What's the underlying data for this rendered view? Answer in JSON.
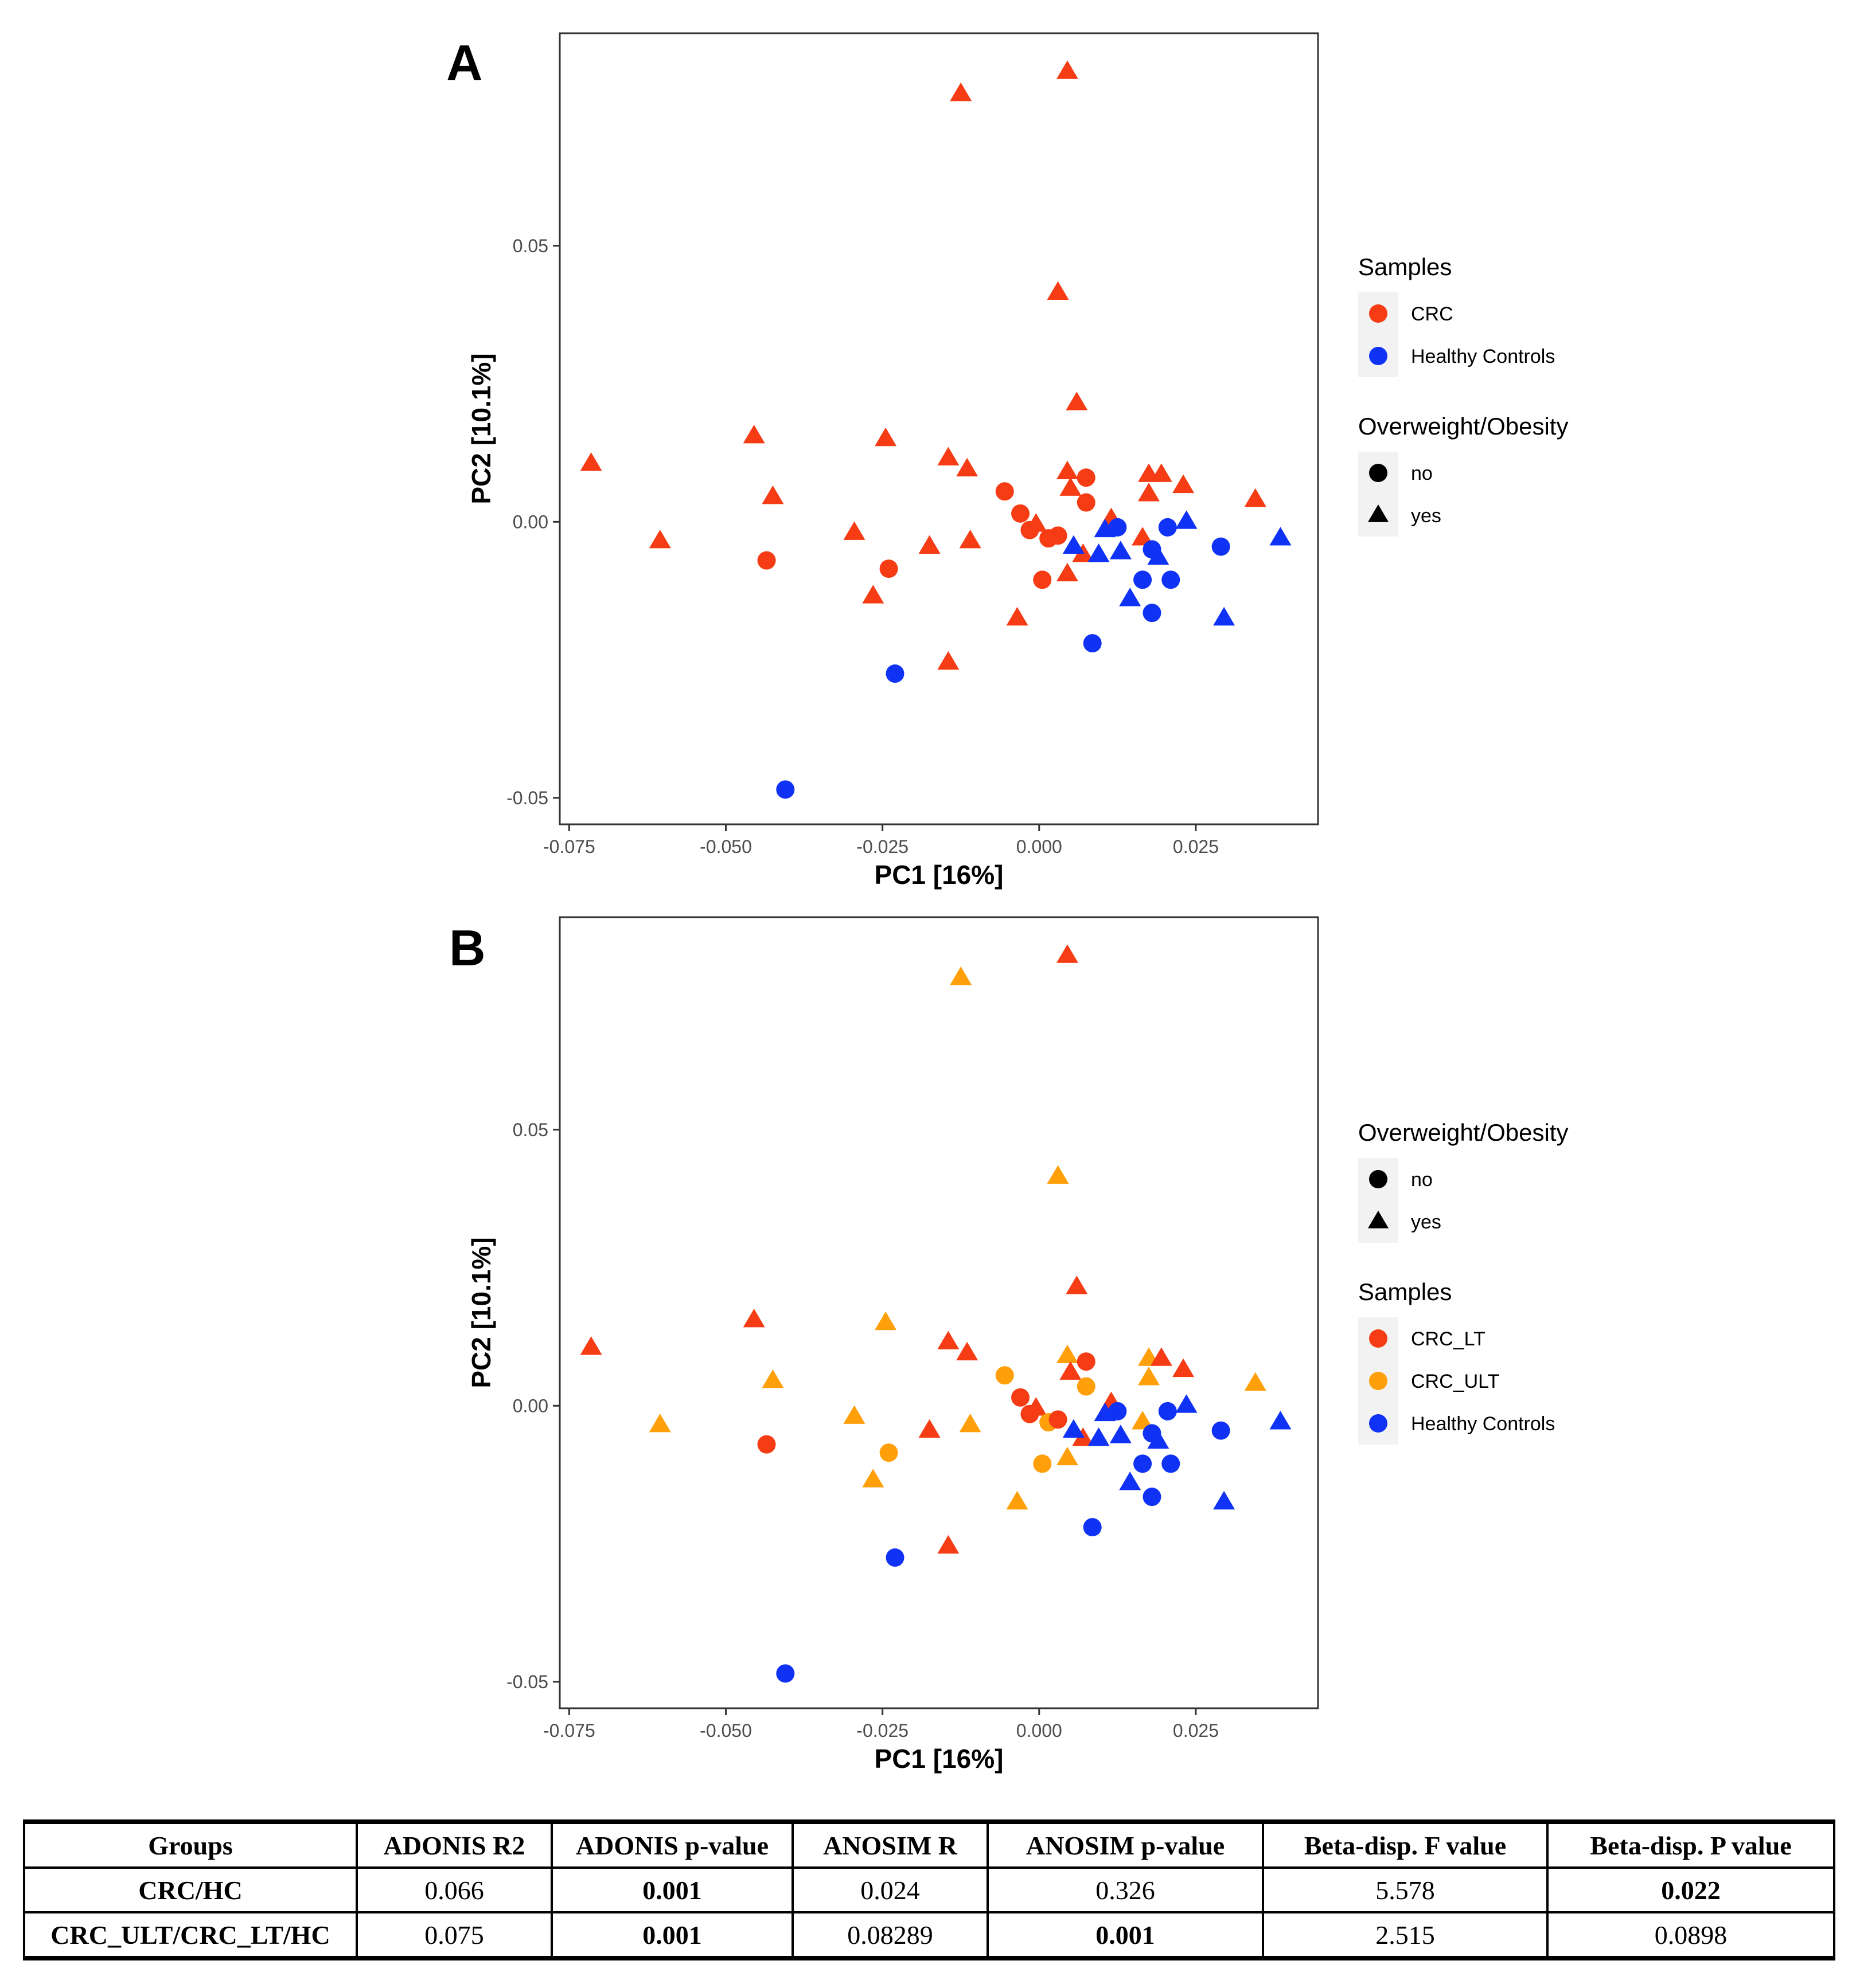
{
  "chart_data": [
    {
      "type": "scatter",
      "panel_label": "A",
      "xlabel": "PC1 [16%]",
      "ylabel": "PC2 [10.1%]",
      "xlim": [
        -0.0765,
        0.0445
      ],
      "ylim": [
        -0.0548,
        0.0885
      ],
      "xticks": [
        -0.075,
        -0.05,
        -0.025,
        0.0,
        0.025
      ],
      "xtick_labels": [
        "-0.075",
        "-0.050",
        "-0.025",
        "0.000",
        "0.025"
      ],
      "yticks": [
        -0.05,
        0.0,
        0.05
      ],
      "ytick_labels": [
        "-0.05",
        "0.00",
        "0.05"
      ],
      "grid": false,
      "legends": [
        {
          "title": "Samples",
          "kind": "color",
          "entries": [
            {
              "label": "CRC",
              "color": "#f53c14"
            },
            {
              "label": "Healthy Controls",
              "color": "#0f32f5"
            }
          ]
        },
        {
          "title": "Overweight/Obesity",
          "kind": "shape",
          "entries": [
            {
              "label": "no",
              "shape": "circle"
            },
            {
              "label": "yes",
              "shape": "triangle"
            }
          ]
        }
      ],
      "points": [
        {
          "x": 0.0045,
          "y": 0.0815,
          "group": "CRC",
          "obese": "yes"
        },
        {
          "x": -0.0125,
          "y": 0.0775,
          "group": "CRC",
          "obese": "yes"
        },
        {
          "x": 0.003,
          "y": 0.0415,
          "group": "CRC",
          "obese": "yes"
        },
        {
          "x": 0.006,
          "y": 0.0215,
          "group": "CRC",
          "obese": "yes"
        },
        {
          "x": -0.0455,
          "y": 0.0155,
          "group": "CRC",
          "obese": "yes"
        },
        {
          "x": -0.0245,
          "y": 0.015,
          "group": "CRC",
          "obese": "yes"
        },
        {
          "x": -0.0145,
          "y": 0.0115,
          "group": "CRC",
          "obese": "yes"
        },
        {
          "x": -0.0715,
          "y": 0.0105,
          "group": "CRC",
          "obese": "yes"
        },
        {
          "x": -0.0115,
          "y": 0.0095,
          "group": "CRC",
          "obese": "yes"
        },
        {
          "x": 0.0045,
          "y": 0.009,
          "group": "CRC",
          "obese": "yes"
        },
        {
          "x": 0.0175,
          "y": 0.0085,
          "group": "CRC",
          "obese": "yes"
        },
        {
          "x": 0.0195,
          "y": 0.0085,
          "group": "CRC",
          "obese": "yes"
        },
        {
          "x": 0.005,
          "y": 0.006,
          "group": "CRC",
          "obese": "yes"
        },
        {
          "x": 0.023,
          "y": 0.0065,
          "group": "CRC",
          "obese": "yes"
        },
        {
          "x": 0.0175,
          "y": 0.005,
          "group": "CRC",
          "obese": "yes"
        },
        {
          "x": -0.0425,
          "y": 0.0045,
          "group": "CRC",
          "obese": "yes"
        },
        {
          "x": 0.0345,
          "y": 0.004,
          "group": "CRC",
          "obese": "yes"
        },
        {
          "x": -0.0005,
          "y": -0.0005,
          "group": "CRC",
          "obese": "yes"
        },
        {
          "x": 0.0115,
          "y": 0.0005,
          "group": "CRC",
          "obese": "yes"
        },
        {
          "x": -0.0295,
          "y": -0.002,
          "group": "CRC",
          "obese": "yes"
        },
        {
          "x": 0.0165,
          "y": -0.003,
          "group": "CRC",
          "obese": "yes"
        },
        {
          "x": -0.0605,
          "y": -0.0035,
          "group": "CRC",
          "obese": "yes"
        },
        {
          "x": -0.011,
          "y": -0.0035,
          "group": "CRC",
          "obese": "yes"
        },
        {
          "x": -0.0175,
          "y": -0.0045,
          "group": "CRC",
          "obese": "yes"
        },
        {
          "x": 0.007,
          "y": -0.006,
          "group": "CRC",
          "obese": "yes"
        },
        {
          "x": 0.0045,
          "y": -0.0095,
          "group": "CRC",
          "obese": "yes"
        },
        {
          "x": -0.0265,
          "y": -0.0135,
          "group": "CRC",
          "obese": "yes"
        },
        {
          "x": -0.0035,
          "y": -0.0175,
          "group": "CRC",
          "obese": "yes"
        },
        {
          "x": -0.0145,
          "y": -0.0255,
          "group": "CRC",
          "obese": "yes"
        },
        {
          "x": -0.0055,
          "y": 0.0055,
          "group": "CRC",
          "obese": "no"
        },
        {
          "x": 0.0075,
          "y": 0.008,
          "group": "CRC",
          "obese": "no"
        },
        {
          "x": 0.0075,
          "y": 0.0035,
          "group": "CRC",
          "obese": "no"
        },
        {
          "x": -0.003,
          "y": 0.0015,
          "group": "CRC",
          "obese": "no"
        },
        {
          "x": -0.0015,
          "y": -0.0015,
          "group": "CRC",
          "obese": "no"
        },
        {
          "x": 0.0015,
          "y": -0.003,
          "group": "CRC",
          "obese": "no"
        },
        {
          "x": 0.003,
          "y": -0.0025,
          "group": "CRC",
          "obese": "no"
        },
        {
          "x": -0.0435,
          "y": -0.007,
          "group": "CRC",
          "obese": "no"
        },
        {
          "x": -0.024,
          "y": -0.0085,
          "group": "CRC",
          "obese": "no"
        },
        {
          "x": 0.0005,
          "y": -0.0105,
          "group": "CRC",
          "obese": "no"
        },
        {
          "x": 0.0055,
          "y": -0.0045,
          "group": "Healthy Controls",
          "obese": "yes"
        },
        {
          "x": 0.0105,
          "y": -0.0015,
          "group": "Healthy Controls",
          "obese": "yes"
        },
        {
          "x": 0.0095,
          "y": -0.006,
          "group": "Healthy Controls",
          "obese": "yes"
        },
        {
          "x": 0.013,
          "y": -0.0055,
          "group": "Healthy Controls",
          "obese": "yes"
        },
        {
          "x": 0.019,
          "y": -0.0065,
          "group": "Healthy Controls",
          "obese": "yes"
        },
        {
          "x": 0.0235,
          "y": 0.0,
          "group": "Healthy Controls",
          "obese": "yes"
        },
        {
          "x": 0.0385,
          "y": -0.003,
          "group": "Healthy Controls",
          "obese": "yes"
        },
        {
          "x": 0.0145,
          "y": -0.014,
          "group": "Healthy Controls",
          "obese": "yes"
        },
        {
          "x": 0.0295,
          "y": -0.0175,
          "group": "Healthy Controls",
          "obese": "yes"
        },
        {
          "x": 0.0125,
          "y": -0.001,
          "group": "Healthy Controls",
          "obese": "no"
        },
        {
          "x": 0.0205,
          "y": -0.001,
          "group": "Healthy Controls",
          "obese": "no"
        },
        {
          "x": 0.018,
          "y": -0.005,
          "group": "Healthy Controls",
          "obese": "no"
        },
        {
          "x": 0.029,
          "y": -0.0045,
          "group": "Healthy Controls",
          "obese": "no"
        },
        {
          "x": 0.0165,
          "y": -0.0105,
          "group": "Healthy Controls",
          "obese": "no"
        },
        {
          "x": 0.021,
          "y": -0.0105,
          "group": "Healthy Controls",
          "obese": "no"
        },
        {
          "x": 0.018,
          "y": -0.0165,
          "group": "Healthy Controls",
          "obese": "no"
        },
        {
          "x": 0.0085,
          "y": -0.022,
          "group": "Healthy Controls",
          "obese": "no"
        },
        {
          "x": -0.023,
          "y": -0.0275,
          "group": "Healthy Controls",
          "obese": "no"
        },
        {
          "x": -0.0405,
          "y": -0.0485,
          "group": "Healthy Controls",
          "obese": "no"
        }
      ]
    },
    {
      "type": "scatter",
      "panel_label": "B",
      "xlabel": "PC1 [16%]",
      "ylabel": "PC2 [10.1%]",
      "xlim": [
        -0.0765,
        0.0445
      ],
      "ylim": [
        -0.0548,
        0.0885
      ],
      "xticks": [
        -0.075,
        -0.05,
        -0.025,
        0.0,
        0.025
      ],
      "xtick_labels": [
        "-0.075",
        "-0.050",
        "-0.025",
        "0.000",
        "0.025"
      ],
      "yticks": [
        -0.05,
        0.0,
        0.05
      ],
      "ytick_labels": [
        "-0.05",
        "0.00",
        "0.05"
      ],
      "grid": false,
      "legends": [
        {
          "title": "Overweight/Obesity",
          "kind": "shape",
          "entries": [
            {
              "label": "no",
              "shape": "circle"
            },
            {
              "label": "yes",
              "shape": "triangle"
            }
          ]
        },
        {
          "title": "Samples",
          "kind": "color",
          "entries": [
            {
              "label": "CRC_LT",
              "color": "#f53c14"
            },
            {
              "label": "CRC_ULT",
              "color": "#ffa00a"
            },
            {
              "label": "Healthy Controls",
              "color": "#0f32f5"
            }
          ]
        }
      ],
      "points": [
        {
          "x": 0.0045,
          "y": 0.0815,
          "group": "CRC_LT",
          "obese": "yes"
        },
        {
          "x": -0.0125,
          "y": 0.0775,
          "group": "CRC_ULT",
          "obese": "yes"
        },
        {
          "x": 0.003,
          "y": 0.0415,
          "group": "CRC_ULT",
          "obese": "yes"
        },
        {
          "x": 0.006,
          "y": 0.0215,
          "group": "CRC_LT",
          "obese": "yes"
        },
        {
          "x": -0.0455,
          "y": 0.0155,
          "group": "CRC_LT",
          "obese": "yes"
        },
        {
          "x": -0.0245,
          "y": 0.015,
          "group": "CRC_ULT",
          "obese": "yes"
        },
        {
          "x": -0.0145,
          "y": 0.0115,
          "group": "CRC_LT",
          "obese": "yes"
        },
        {
          "x": -0.0715,
          "y": 0.0105,
          "group": "CRC_LT",
          "obese": "yes"
        },
        {
          "x": -0.0115,
          "y": 0.0095,
          "group": "CRC_LT",
          "obese": "yes"
        },
        {
          "x": 0.0045,
          "y": 0.009,
          "group": "CRC_ULT",
          "obese": "yes"
        },
        {
          "x": 0.0175,
          "y": 0.0085,
          "group": "CRC_ULT",
          "obese": "yes"
        },
        {
          "x": 0.0195,
          "y": 0.0085,
          "group": "CRC_LT",
          "obese": "yes"
        },
        {
          "x": 0.005,
          "y": 0.006,
          "group": "CRC_LT",
          "obese": "yes"
        },
        {
          "x": 0.023,
          "y": 0.0065,
          "group": "CRC_LT",
          "obese": "yes"
        },
        {
          "x": 0.0175,
          "y": 0.005,
          "group": "CRC_ULT",
          "obese": "yes"
        },
        {
          "x": -0.0425,
          "y": 0.0045,
          "group": "CRC_ULT",
          "obese": "yes"
        },
        {
          "x": 0.0345,
          "y": 0.004,
          "group": "CRC_ULT",
          "obese": "yes"
        },
        {
          "x": -0.0005,
          "y": -0.0005,
          "group": "CRC_LT",
          "obese": "yes"
        },
        {
          "x": 0.0115,
          "y": 0.0005,
          "group": "CRC_LT",
          "obese": "yes"
        },
        {
          "x": -0.0295,
          "y": -0.002,
          "group": "CRC_ULT",
          "obese": "yes"
        },
        {
          "x": 0.0165,
          "y": -0.003,
          "group": "CRC_ULT",
          "obese": "yes"
        },
        {
          "x": -0.0605,
          "y": -0.0035,
          "group": "CRC_ULT",
          "obese": "yes"
        },
        {
          "x": -0.011,
          "y": -0.0035,
          "group": "CRC_ULT",
          "obese": "yes"
        },
        {
          "x": -0.0175,
          "y": -0.0045,
          "group": "CRC_LT",
          "obese": "yes"
        },
        {
          "x": 0.007,
          "y": -0.006,
          "group": "CRC_LT",
          "obese": "yes"
        },
        {
          "x": 0.0045,
          "y": -0.0095,
          "group": "CRC_ULT",
          "obese": "yes"
        },
        {
          "x": -0.0265,
          "y": -0.0135,
          "group": "CRC_ULT",
          "obese": "yes"
        },
        {
          "x": -0.0035,
          "y": -0.0175,
          "group": "CRC_ULT",
          "obese": "yes"
        },
        {
          "x": -0.0145,
          "y": -0.0255,
          "group": "CRC_LT",
          "obese": "yes"
        },
        {
          "x": -0.0055,
          "y": 0.0055,
          "group": "CRC_ULT",
          "obese": "no"
        },
        {
          "x": 0.0075,
          "y": 0.008,
          "group": "CRC_LT",
          "obese": "no"
        },
        {
          "x": 0.0075,
          "y": 0.0035,
          "group": "CRC_ULT",
          "obese": "no"
        },
        {
          "x": -0.003,
          "y": 0.0015,
          "group": "CRC_LT",
          "obese": "no"
        },
        {
          "x": -0.0015,
          "y": -0.0015,
          "group": "CRC_LT",
          "obese": "no"
        },
        {
          "x": 0.0015,
          "y": -0.003,
          "group": "CRC_ULT",
          "obese": "no"
        },
        {
          "x": 0.003,
          "y": -0.0025,
          "group": "CRC_LT",
          "obese": "no"
        },
        {
          "x": -0.0435,
          "y": -0.007,
          "group": "CRC_LT",
          "obese": "no"
        },
        {
          "x": -0.024,
          "y": -0.0085,
          "group": "CRC_ULT",
          "obese": "no"
        },
        {
          "x": 0.0005,
          "y": -0.0105,
          "group": "CRC_ULT",
          "obese": "no"
        },
        {
          "x": 0.0055,
          "y": -0.0045,
          "group": "Healthy Controls",
          "obese": "yes"
        },
        {
          "x": 0.0105,
          "y": -0.0015,
          "group": "Healthy Controls",
          "obese": "yes"
        },
        {
          "x": 0.0095,
          "y": -0.006,
          "group": "Healthy Controls",
          "obese": "yes"
        },
        {
          "x": 0.013,
          "y": -0.0055,
          "group": "Healthy Controls",
          "obese": "yes"
        },
        {
          "x": 0.019,
          "y": -0.0065,
          "group": "Healthy Controls",
          "obese": "yes"
        },
        {
          "x": 0.0235,
          "y": 0.0,
          "group": "Healthy Controls",
          "obese": "yes"
        },
        {
          "x": 0.0385,
          "y": -0.003,
          "group": "Healthy Controls",
          "obese": "yes"
        },
        {
          "x": 0.0145,
          "y": -0.014,
          "group": "Healthy Controls",
          "obese": "yes"
        },
        {
          "x": 0.0295,
          "y": -0.0175,
          "group": "Healthy Controls",
          "obese": "yes"
        },
        {
          "x": 0.0125,
          "y": -0.001,
          "group": "Healthy Controls",
          "obese": "no"
        },
        {
          "x": 0.0205,
          "y": -0.001,
          "group": "Healthy Controls",
          "obese": "no"
        },
        {
          "x": 0.018,
          "y": -0.005,
          "group": "Healthy Controls",
          "obese": "no"
        },
        {
          "x": 0.029,
          "y": -0.0045,
          "group": "Healthy Controls",
          "obese": "no"
        },
        {
          "x": 0.0165,
          "y": -0.0105,
          "group": "Healthy Controls",
          "obese": "no"
        },
        {
          "x": 0.021,
          "y": -0.0105,
          "group": "Healthy Controls",
          "obese": "no"
        },
        {
          "x": 0.018,
          "y": -0.0165,
          "group": "Healthy Controls",
          "obese": "no"
        },
        {
          "x": 0.0085,
          "y": -0.022,
          "group": "Healthy Controls",
          "obese": "no"
        },
        {
          "x": -0.023,
          "y": -0.0275,
          "group": "Healthy Controls",
          "obese": "no"
        },
        {
          "x": -0.0405,
          "y": -0.0485,
          "group": "Healthy Controls",
          "obese": "no"
        }
      ]
    }
  ],
  "table": {
    "headers": [
      "Groups",
      "ADONIS R2",
      "ADONIS p-value",
      "ANOSIM R",
      "ANOSIM p-value",
      "Beta-disp. F value",
      "Beta-disp. P value"
    ],
    "rows": [
      {
        "cells": [
          "CRC/HC",
          "0.066",
          "0.001",
          "0.024",
          "0.326",
          "5.578",
          "0.022"
        ],
        "bold": [
          true,
          false,
          true,
          false,
          false,
          false,
          true
        ]
      },
      {
        "cells": [
          "CRC_ULT/CRC_LT/HC",
          "0.075",
          "0.001",
          "0.08289",
          "0.001",
          "2.515",
          "0.0898"
        ],
        "bold": [
          true,
          false,
          true,
          false,
          true,
          false,
          false
        ]
      }
    ]
  }
}
